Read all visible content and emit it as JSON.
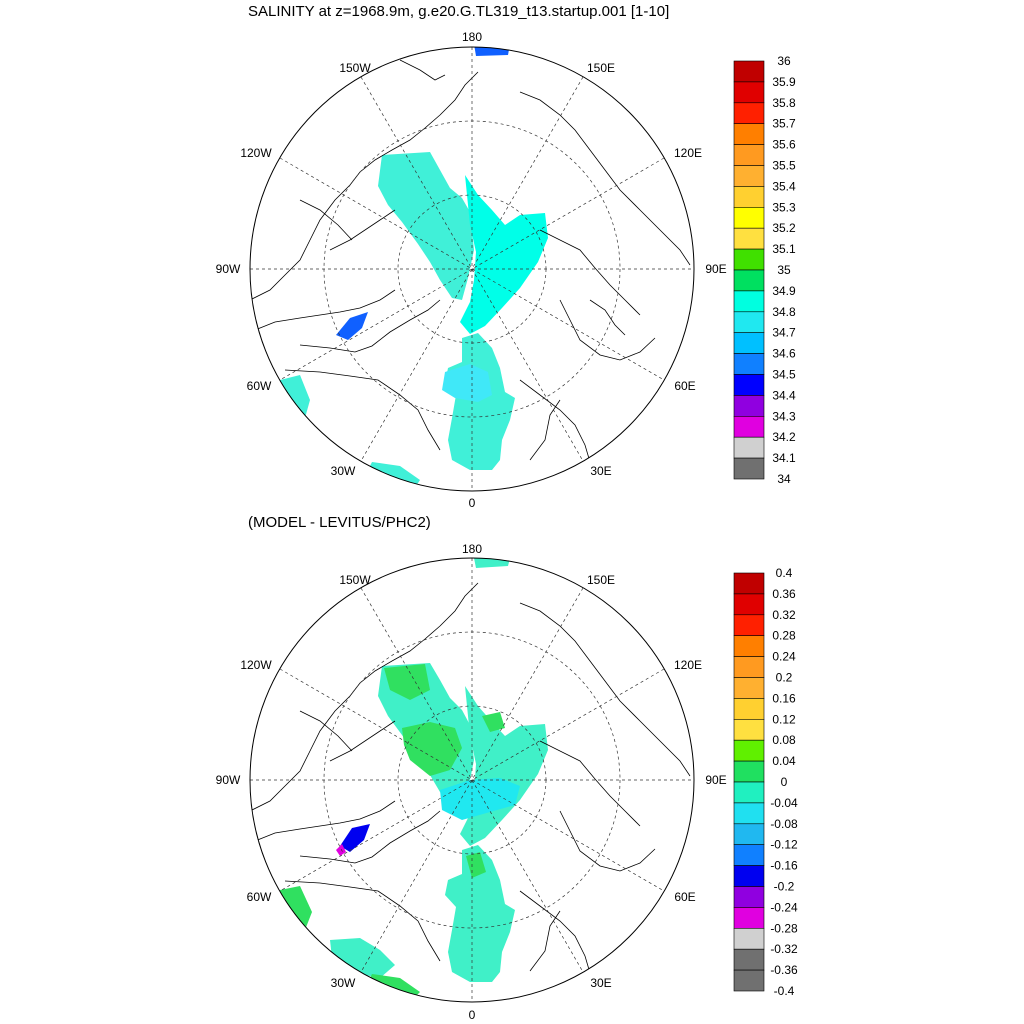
{
  "panels": [
    {
      "title": "SALINITY at z=1968.9m, g.e20.G.TL319_t13.startup.001 [1-10]",
      "colorbar": {
        "labels": [
          "36",
          "35.9",
          "35.8",
          "35.7",
          "35.6",
          "35.5",
          "35.4",
          "35.3",
          "35.2",
          "35.1",
          "35",
          "34.9",
          "34.8",
          "34.7",
          "34.6",
          "34.5",
          "34.4",
          "34.3",
          "34.2",
          "34.1",
          "34"
        ],
        "colors": [
          "#c00000",
          "#e00000",
          "#ff2000",
          "#ff7f00",
          "#ff9a20",
          "#ffb030",
          "#ffd030",
          "#ffff00",
          "#ffe040",
          "#40e000",
          "#00e060",
          "#00ffe0",
          "#20e8f0",
          "#00c0ff",
          "#1080ff",
          "#0000ff",
          "#9000e0",
          "#e000e0",
          "#d0d0d0",
          "#707070"
        ]
      },
      "map_labels": {
        "lon_180": "180",
        "lon_150W": "150W",
        "lon_150E": "150E",
        "lon_120W": "120W",
        "lon_120E": "120E",
        "lon_90W": "90W",
        "lon_90E": "90E",
        "lon_60W": "60W",
        "lon_60E": "60E",
        "lon_30W": "30W",
        "lon_30E": "30E",
        "lon_0": "0"
      }
    },
    {
      "title": "(MODEL - LEVITUS/PHC2)",
      "colorbar": {
        "labels": [
          "0.4",
          "0.36",
          "0.32",
          "0.28",
          "0.24",
          "0.2",
          "0.16",
          "0.12",
          "0.08",
          "0.04",
          "0",
          "-0.04",
          "-0.08",
          "-0.12",
          "-0.16",
          "-0.2",
          "-0.24",
          "-0.28",
          "-0.32",
          "-0.36",
          "-0.4"
        ],
        "colors": [
          "#c00000",
          "#e00000",
          "#ff2000",
          "#ff7f00",
          "#ff9a20",
          "#ffb030",
          "#ffd030",
          "#ffe040",
          "#60f000",
          "#20e060",
          "#20f0c0",
          "#20e0f0",
          "#20b8f0",
          "#1080ff",
          "#0000f0",
          "#9000e0",
          "#e000e0",
          "#d0d0d0",
          "#707070",
          "#707070"
        ]
      },
      "map_labels": {
        "lon_180": "180",
        "lon_150W": "150W",
        "lon_150E": "150E",
        "lon_120W": "120W",
        "lon_120E": "120E",
        "lon_90W": "90W",
        "lon_90E": "90E",
        "lon_60W": "60W",
        "lon_60E": "60E",
        "lon_30W": "30W",
        "lon_30E": "30E",
        "lon_0": "0"
      }
    }
  ],
  "colors": {
    "fill_main_top": "#40f0d8",
    "fill_light_top": "#00ffe8",
    "fill_blue": "#1060ff",
    "fill_main_bot": "#40f0c8",
    "fill_green": "#30e060",
    "fill_cyan_bot": "#20e8f0"
  }
}
